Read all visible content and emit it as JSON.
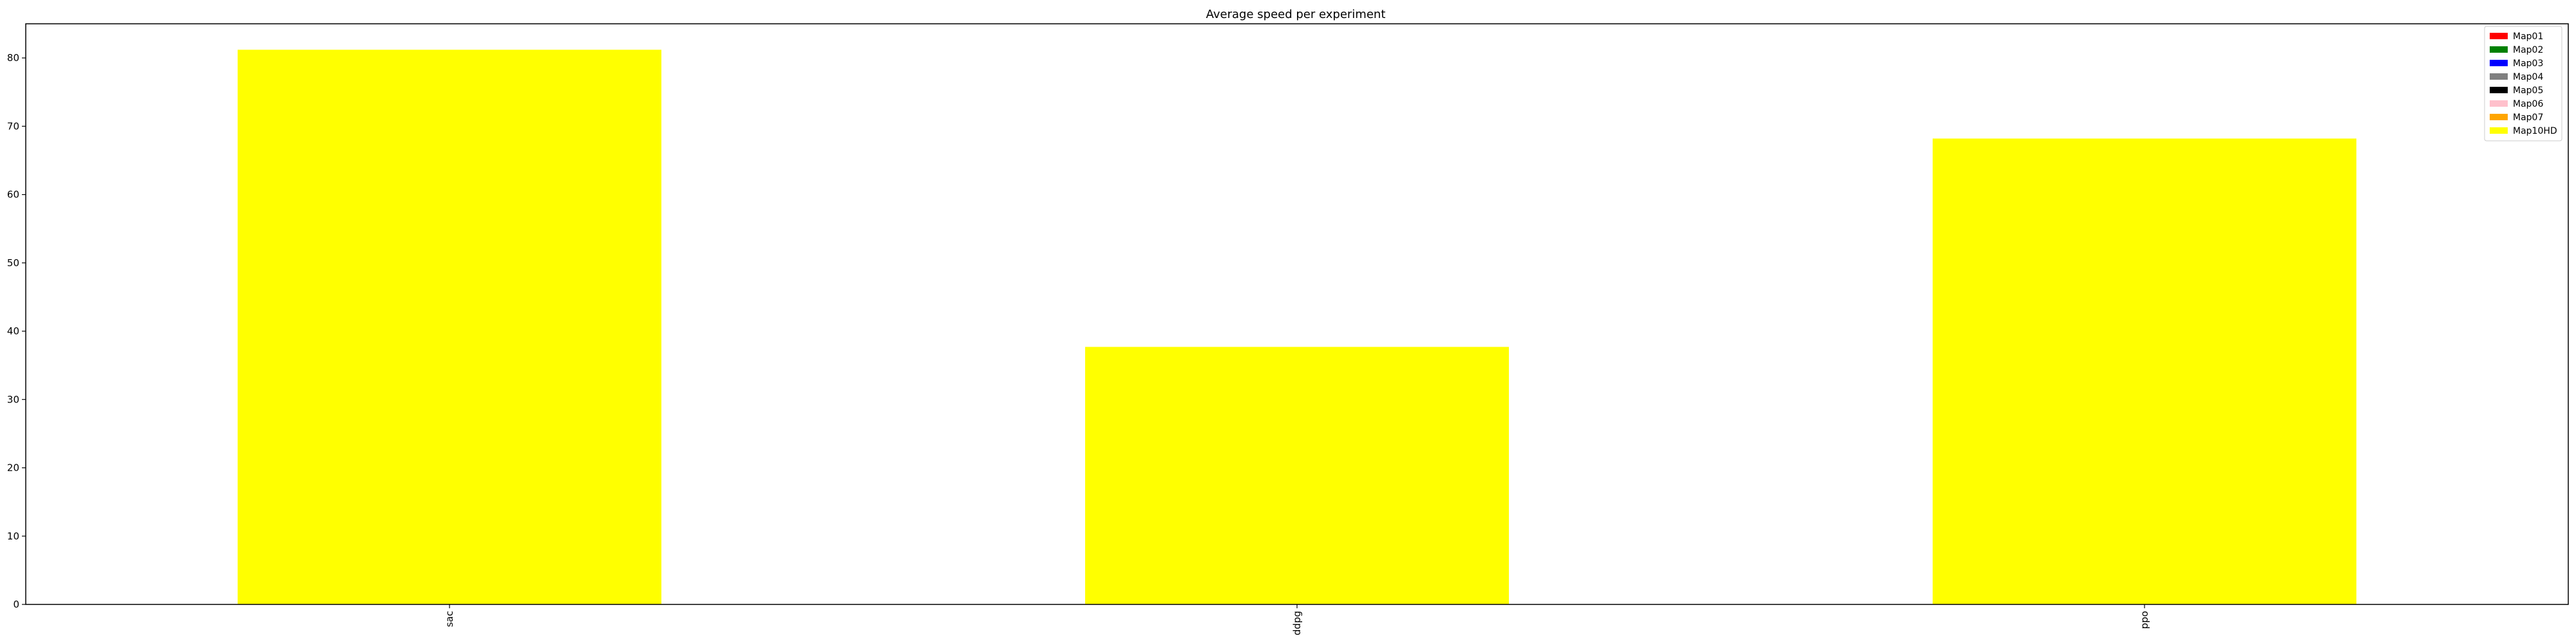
{
  "chart_data": {
    "type": "bar",
    "title": "Average speed per experiment",
    "xlabel": "",
    "ylabel": "",
    "categories": [
      "sac",
      "ddpg",
      "ppo"
    ],
    "ylim": [
      0,
      85
    ],
    "yticks": [
      "0",
      "10",
      "20",
      "30",
      "40",
      "50",
      "60",
      "70",
      "80"
    ],
    "series": [
      {
        "name": "Map01",
        "color": "#ff0000",
        "values": [
          0,
          0,
          0
        ]
      },
      {
        "name": "Map02",
        "color": "#008000",
        "values": [
          0,
          0,
          0
        ]
      },
      {
        "name": "Map03",
        "color": "#0000ff",
        "values": [
          0,
          0,
          0
        ]
      },
      {
        "name": "Map04",
        "color": "#808080",
        "values": [
          0,
          0,
          0
        ]
      },
      {
        "name": "Map05",
        "color": "#000000",
        "values": [
          0,
          0,
          0
        ]
      },
      {
        "name": "Map06",
        "color": "#ffc0cb",
        "values": [
          0,
          0,
          0
        ]
      },
      {
        "name": "Map07",
        "color": "#ffa500",
        "values": [
          0,
          0,
          0
        ]
      },
      {
        "name": "Map10HD",
        "color": "#ffff00",
        "values": [
          81.2,
          37.7,
          68.2
        ]
      }
    ],
    "stacked": true,
    "grid": false,
    "legend_position": "top-right",
    "xtick_rotation": "vertical"
  }
}
